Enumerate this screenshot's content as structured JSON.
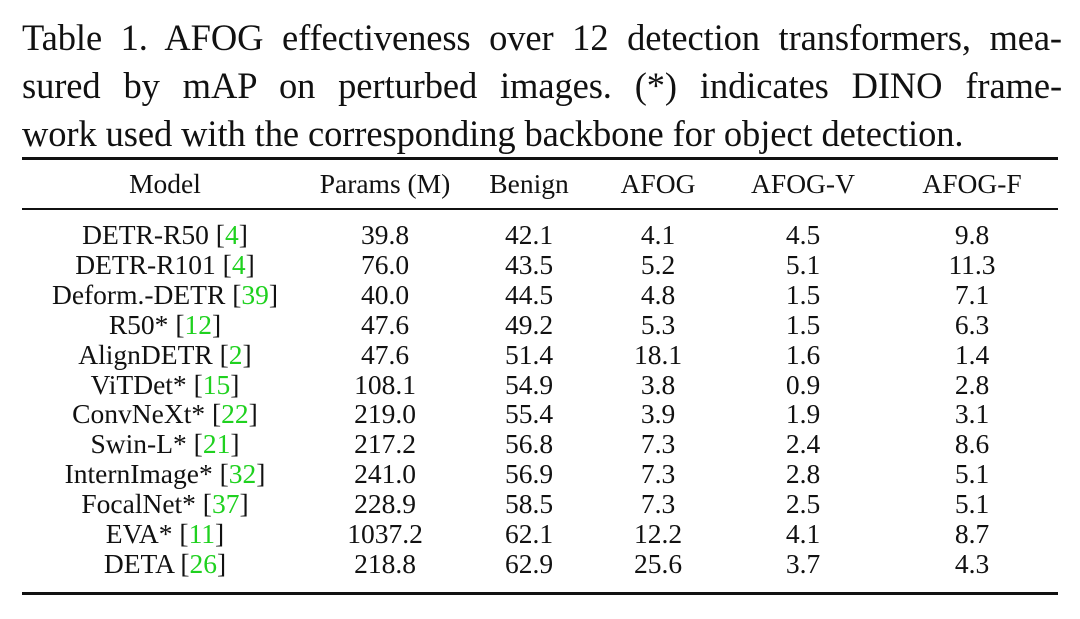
{
  "caption": {
    "lines": [
      "Table 1. AFOG effectiveness over 12 detection transformers, mea-",
      "sured by mAP on perturbed images.  (*) indicates DINO frame-",
      "work used with the corresponding backbone for object detection."
    ]
  },
  "table": {
    "headers": [
      "Model",
      "Params (M)",
      "Benign",
      "AFOG",
      "AFOG-V",
      "AFOG-F"
    ],
    "rows": [
      {
        "model": "DETR-R50",
        "ref": "4",
        "params": "39.8",
        "benign": "42.1",
        "afog": "4.1",
        "afog_v": "4.5",
        "afog_f": "9.8"
      },
      {
        "model": "DETR-R101",
        "ref": "4",
        "params": "76.0",
        "benign": "43.5",
        "afog": "5.2",
        "afog_v": "5.1",
        "afog_f": "11.3"
      },
      {
        "model": "Deform.-DETR",
        "ref": "39",
        "params": "40.0",
        "benign": "44.5",
        "afog": "4.8",
        "afog_v": "1.5",
        "afog_f": "7.1"
      },
      {
        "model": "R50*",
        "ref": "12",
        "params": "47.6",
        "benign": "49.2",
        "afog": "5.3",
        "afog_v": "1.5",
        "afog_f": "6.3"
      },
      {
        "model": "AlignDETR",
        "ref": "2",
        "params": "47.6",
        "benign": "51.4",
        "afog": "18.1",
        "afog_v": "1.6",
        "afog_f": "1.4"
      },
      {
        "model": "ViTDet*",
        "ref": "15",
        "params": "108.1",
        "benign": "54.9",
        "afog": "3.8",
        "afog_v": "0.9",
        "afog_f": "2.8"
      },
      {
        "model": "ConvNeXt*",
        "ref": "22",
        "params": "219.0",
        "benign": "55.4",
        "afog": "3.9",
        "afog_v": "1.9",
        "afog_f": "3.1"
      },
      {
        "model": "Swin-L*",
        "ref": "21",
        "params": "217.2",
        "benign": "56.8",
        "afog": "7.3",
        "afog_v": "2.4",
        "afog_f": "8.6"
      },
      {
        "model": "InternImage*",
        "ref": "32",
        "params": "241.0",
        "benign": "56.9",
        "afog": "7.3",
        "afog_v": "2.8",
        "afog_f": "5.1"
      },
      {
        "model": "FocalNet*",
        "ref": "37",
        "params": "228.9",
        "benign": "58.5",
        "afog": "7.3",
        "afog_v": "2.5",
        "afog_f": "5.1"
      },
      {
        "model": "EVA*",
        "ref": "11",
        "params": "1037.2",
        "benign": "62.1",
        "afog": "12.2",
        "afog_v": "4.1",
        "afog_f": "8.7"
      },
      {
        "model": "DETA",
        "ref": "26",
        "params": "218.8",
        "benign": "62.9",
        "afog": "25.6",
        "afog_v": "3.7",
        "afog_f": "4.3"
      }
    ]
  },
  "colors": {
    "text": "#111111",
    "citation": "#1fd11f",
    "background": "#ffffff"
  }
}
